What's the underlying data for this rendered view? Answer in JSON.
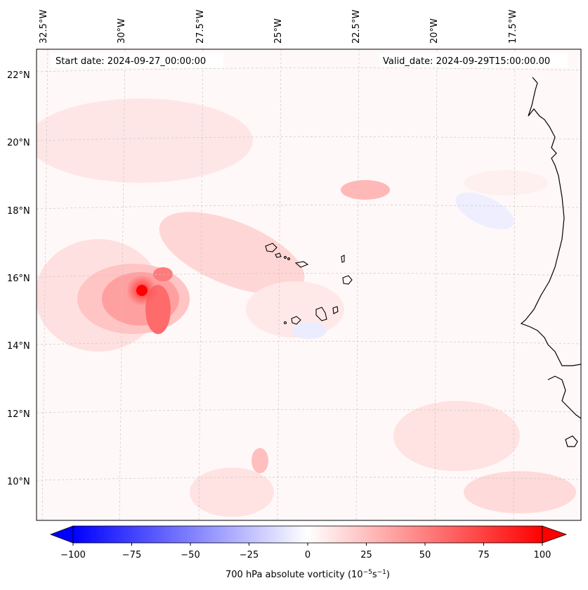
{
  "header": {
    "start_label": "Start date: 2024-09-27_00:00:00",
    "valid_label": "Valid_date: 2024-09-29T15:00:00.00"
  },
  "map": {
    "lon_ticks": [
      "32.5°W",
      "30°W",
      "27.5°W",
      "25°W",
      "22.5°W",
      "20°W",
      "17.5°W"
    ],
    "lat_ticks": [
      "22°N",
      "20°N",
      "18°N",
      "16°N",
      "14°N",
      "12°N",
      "10°N"
    ],
    "gridlines": "dashed light gray",
    "coastline_color": "#000000"
  },
  "colorbar": {
    "ticks": [
      "−100",
      "−75",
      "−50",
      "−25",
      "0",
      "25",
      "50",
      "75",
      "100"
    ],
    "label_main": "700 hPa absolute vorticity (10",
    "label_exp1": "−5",
    "label_mid": "s",
    "label_exp2": "−1",
    "label_close": ")",
    "min_color": "#0000ff",
    "mid_color": "#ffffff",
    "max_color": "#ff0000",
    "extend": "both"
  }
}
